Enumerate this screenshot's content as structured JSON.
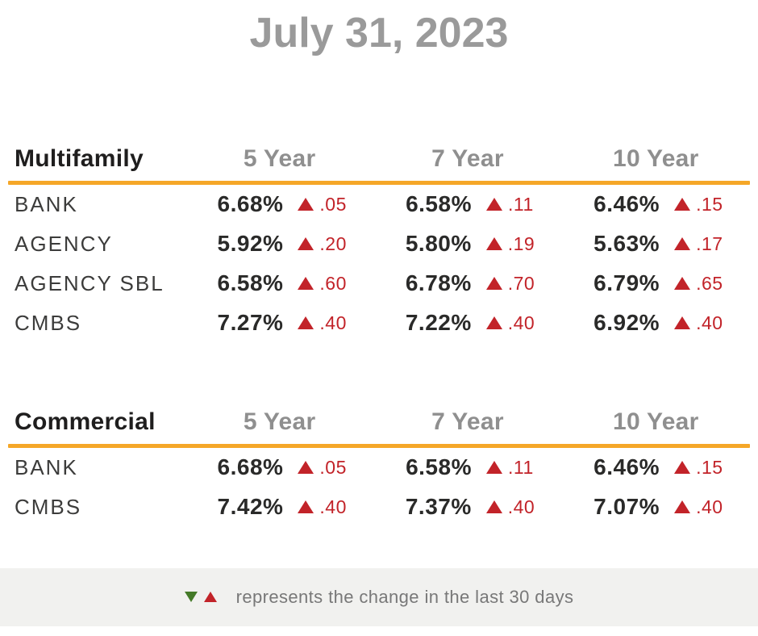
{
  "title": "July 31, 2023",
  "colors": {
    "accent": "#F5A728",
    "up": "#C22329",
    "down": "#447A28",
    "title_gray": "#9A9A9A",
    "heading_gray": "#8F8F8F",
    "label": "#3C3C3B",
    "value": "#2A2A29",
    "section": "#1F1E1E",
    "legend_bg": "#F1F1EF",
    "legend_text": "#787878"
  },
  "tables": [
    {
      "name": "Multifamily",
      "columns": [
        "5 Year",
        "7 Year",
        "10 Year"
      ],
      "rows": [
        {
          "label": "BANK",
          "cells": [
            {
              "rate": "6.68%",
              "direction": "up",
              "change": ".05"
            },
            {
              "rate": "6.58%",
              "direction": "up",
              "change": ".11"
            },
            {
              "rate": "6.46%",
              "direction": "up",
              "change": ".15"
            }
          ]
        },
        {
          "label": "AGENCY",
          "cells": [
            {
              "rate": "5.92%",
              "direction": "up",
              "change": ".20"
            },
            {
              "rate": "5.80%",
              "direction": "up",
              "change": ".19"
            },
            {
              "rate": "5.63%",
              "direction": "up",
              "change": ".17"
            }
          ]
        },
        {
          "label": "AGENCY SBL",
          "cells": [
            {
              "rate": "6.58%",
              "direction": "up",
              "change": ".60"
            },
            {
              "rate": "6.78%",
              "direction": "up",
              "change": ".70"
            },
            {
              "rate": "6.79%",
              "direction": "up",
              "change": ".65"
            }
          ]
        },
        {
          "label": "CMBS",
          "cells": [
            {
              "rate": "7.27%",
              "direction": "up",
              "change": ".40"
            },
            {
              "rate": "7.22%",
              "direction": "up",
              "change": ".40"
            },
            {
              "rate": "6.92%",
              "direction": "up",
              "change": ".40"
            }
          ]
        }
      ]
    },
    {
      "name": "Commercial",
      "columns": [
        "5 Year",
        "7 Year",
        "10 Year"
      ],
      "rows": [
        {
          "label": "BANK",
          "cells": [
            {
              "rate": "6.68%",
              "direction": "up",
              "change": ".05"
            },
            {
              "rate": "6.58%",
              "direction": "up",
              "change": ".11"
            },
            {
              "rate": "6.46%",
              "direction": "up",
              "change": ".15"
            }
          ]
        },
        {
          "label": "CMBS",
          "cells": [
            {
              "rate": "7.42%",
              "direction": "up",
              "change": ".40"
            },
            {
              "rate": "7.37%",
              "direction": "up",
              "change": ".40"
            },
            {
              "rate": "7.07%",
              "direction": "up",
              "change": ".40"
            }
          ]
        }
      ]
    }
  ],
  "legend": {
    "text": "represents the change in the last 30 days"
  },
  "chart_data": [
    {
      "type": "table",
      "title": "Multifamily",
      "as_of": "July 31, 2023",
      "columns": [
        "5 Year",
        "7 Year",
        "10 Year"
      ],
      "rows": [
        {
          "label": "BANK",
          "rates_pct": [
            6.68,
            6.58,
            6.46
          ],
          "change_30d": [
            0.05,
            0.11,
            0.15
          ],
          "direction": [
            "up",
            "up",
            "up"
          ]
        },
        {
          "label": "AGENCY",
          "rates_pct": [
            5.92,
            5.8,
            5.63
          ],
          "change_30d": [
            0.2,
            0.19,
            0.17
          ],
          "direction": [
            "up",
            "up",
            "up"
          ]
        },
        {
          "label": "AGENCY SBL",
          "rates_pct": [
            6.58,
            6.78,
            6.79
          ],
          "change_30d": [
            0.6,
            0.7,
            0.65
          ],
          "direction": [
            "up",
            "up",
            "up"
          ]
        },
        {
          "label": "CMBS",
          "rates_pct": [
            7.27,
            7.22,
            6.92
          ],
          "change_30d": [
            0.4,
            0.4,
            0.4
          ],
          "direction": [
            "up",
            "up",
            "up"
          ]
        }
      ]
    },
    {
      "type": "table",
      "title": "Commercial",
      "as_of": "July 31, 2023",
      "columns": [
        "5 Year",
        "7 Year",
        "10 Year"
      ],
      "rows": [
        {
          "label": "BANK",
          "rates_pct": [
            6.68,
            6.58,
            6.46
          ],
          "change_30d": [
            0.05,
            0.11,
            0.15
          ],
          "direction": [
            "up",
            "up",
            "up"
          ]
        },
        {
          "label": "CMBS",
          "rates_pct": [
            7.42,
            7.37,
            7.07
          ],
          "change_30d": [
            0.4,
            0.4,
            0.4
          ],
          "direction": [
            "up",
            "up",
            "up"
          ]
        }
      ]
    }
  ]
}
